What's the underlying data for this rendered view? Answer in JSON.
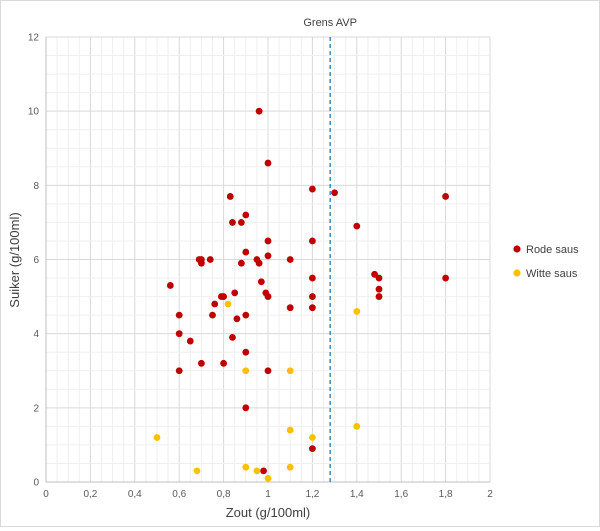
{
  "chart_data": {
    "type": "scatter",
    "xlabel": "Zout (g/100ml)",
    "ylabel": "Suiker (g/100ml)",
    "xlim": [
      0,
      2
    ],
    "ylim": [
      0,
      12
    ],
    "x_ticks": [
      "0",
      "0,2",
      "0,4",
      "0,6",
      "0,8",
      "1",
      "1,2",
      "1,4",
      "1,6",
      "1,8",
      "2"
    ],
    "y_ticks": [
      "0",
      "2",
      "4",
      "6",
      "8",
      "10",
      "12"
    ],
    "grid": true,
    "legend_position": "right",
    "annotation": {
      "label": "Grens AVP",
      "x": 1.28
    },
    "series": [
      {
        "name": "Rode saus",
        "color": "#c00000",
        "points": [
          [
            0.96,
            10.0
          ],
          [
            1.0,
            8.6
          ],
          [
            1.2,
            7.9
          ],
          [
            1.3,
            7.8
          ],
          [
            0.83,
            7.7
          ],
          [
            1.8,
            7.7
          ],
          [
            0.9,
            7.2
          ],
          [
            0.84,
            7.0
          ],
          [
            0.88,
            7.0
          ],
          [
            1.4,
            6.9
          ],
          [
            1.0,
            6.5
          ],
          [
            1.2,
            6.5
          ],
          [
            0.9,
            6.2
          ],
          [
            1.0,
            6.1
          ],
          [
            0.7,
            6.0
          ],
          [
            0.74,
            6.0
          ],
          [
            0.95,
            6.0
          ],
          [
            1.1,
            6.0
          ],
          [
            0.69,
            6.0
          ],
          [
            0.7,
            5.9
          ],
          [
            0.88,
            5.9
          ],
          [
            0.96,
            5.9
          ],
          [
            1.48,
            5.6
          ],
          [
            1.2,
            5.5
          ],
          [
            1.5,
            5.5
          ],
          [
            1.8,
            5.5
          ],
          [
            0.97,
            5.4
          ],
          [
            0.56,
            5.3
          ],
          [
            1.5,
            5.2
          ],
          [
            0.85,
            5.1
          ],
          [
            0.99,
            5.1
          ],
          [
            0.79,
            5.0
          ],
          [
            0.8,
            5.0
          ],
          [
            1.0,
            5.0
          ],
          [
            1.2,
            5.0
          ],
          [
            1.5,
            5.0
          ],
          [
            0.76,
            4.8
          ],
          [
            1.1,
            4.7
          ],
          [
            1.2,
            4.7
          ],
          [
            0.6,
            4.5
          ],
          [
            0.75,
            4.5
          ],
          [
            0.9,
            4.5
          ],
          [
            0.86,
            4.4
          ],
          [
            0.6,
            4.0
          ],
          [
            0.84,
            3.9
          ],
          [
            0.65,
            3.8
          ],
          [
            0.9,
            3.5
          ],
          [
            0.7,
            3.2
          ],
          [
            0.8,
            3.2
          ],
          [
            0.6,
            3.0
          ],
          [
            1.0,
            3.0
          ],
          [
            0.9,
            2.0
          ],
          [
            1.2,
            0.9
          ],
          [
            0.98,
            0.3
          ]
        ]
      },
      {
        "name": "Witte saus",
        "color": "#ffc000",
        "points": [
          [
            0.82,
            4.8
          ],
          [
            1.4,
            4.6
          ],
          [
            0.9,
            3.0
          ],
          [
            1.1,
            3.0
          ],
          [
            1.4,
            1.5
          ],
          [
            1.1,
            1.4
          ],
          [
            0.5,
            1.2
          ],
          [
            1.2,
            1.2
          ],
          [
            0.9,
            0.4
          ],
          [
            1.1,
            0.4
          ],
          [
            0.68,
            0.3
          ],
          [
            0.95,
            0.3
          ],
          [
            1.0,
            0.1
          ]
        ]
      }
    ]
  }
}
